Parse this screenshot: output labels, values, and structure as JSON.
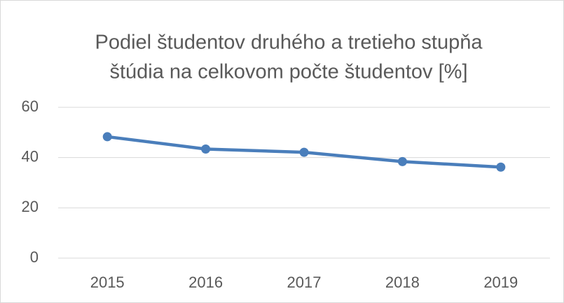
{
  "chart_data": {
    "type": "line",
    "title": [
      "Podiel študentov druhého a tretieho stupňa",
      "štúdia na celkovom počte študentov [%]"
    ],
    "categories": [
      "2015",
      "2016",
      "2017",
      "2018",
      "2019"
    ],
    "series": [
      {
        "color": "#4a7ebb",
        "values": [
          48.3,
          43.4,
          42.1,
          38.4,
          36.2
        ]
      }
    ],
    "ylim": [
      0,
      60
    ],
    "yticks": [
      0,
      20,
      40,
      60
    ],
    "grid": true
  }
}
